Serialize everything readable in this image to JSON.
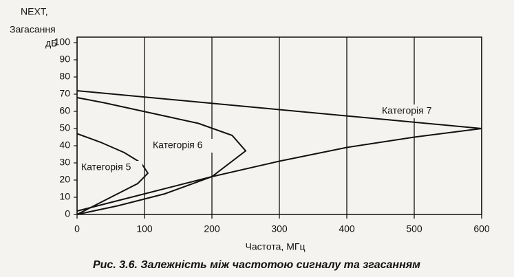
{
  "chart_data": {
    "type": "line",
    "y_label_lines": [
      "NEXT,",
      "Загасання",
      "дБ"
    ],
    "x_label": "Частота, МГц",
    "caption": "Рис. 3.6. Залежність між частотою сигналу та згасанням",
    "xlim": [
      0,
      600
    ],
    "xticks": [
      0,
      100,
      200,
      300,
      400,
      500,
      600
    ],
    "ylim": [
      0,
      100
    ],
    "yticks": [
      0,
      10,
      20,
      30,
      40,
      50,
      60,
      70,
      80,
      90,
      100
    ],
    "grid": true,
    "series": [
      {
        "name": "Категорія 5",
        "color": "#111111",
        "x": [
          0,
          30,
          60,
          90,
          105,
          95,
          70,
          35,
          0
        ],
        "values": [
          0,
          6,
          12,
          18,
          24,
          30,
          36,
          42,
          47
        ]
      },
      {
        "name": "Категорія 6",
        "color": "#111111",
        "x": [
          0,
          60,
          130,
          200,
          250,
          230,
          180,
          110,
          40,
          0
        ],
        "values": [
          0,
          5,
          12,
          22,
          37,
          46,
          53,
          59,
          65,
          68
        ]
      },
      {
        "name": "Категорія 7",
        "color": "#111111",
        "x": [
          0,
          100,
          200,
          300,
          400,
          500,
          600,
          300,
          0
        ],
        "values": [
          2,
          12,
          22,
          31,
          39,
          45,
          50,
          61,
          72
        ]
      }
    ]
  }
}
